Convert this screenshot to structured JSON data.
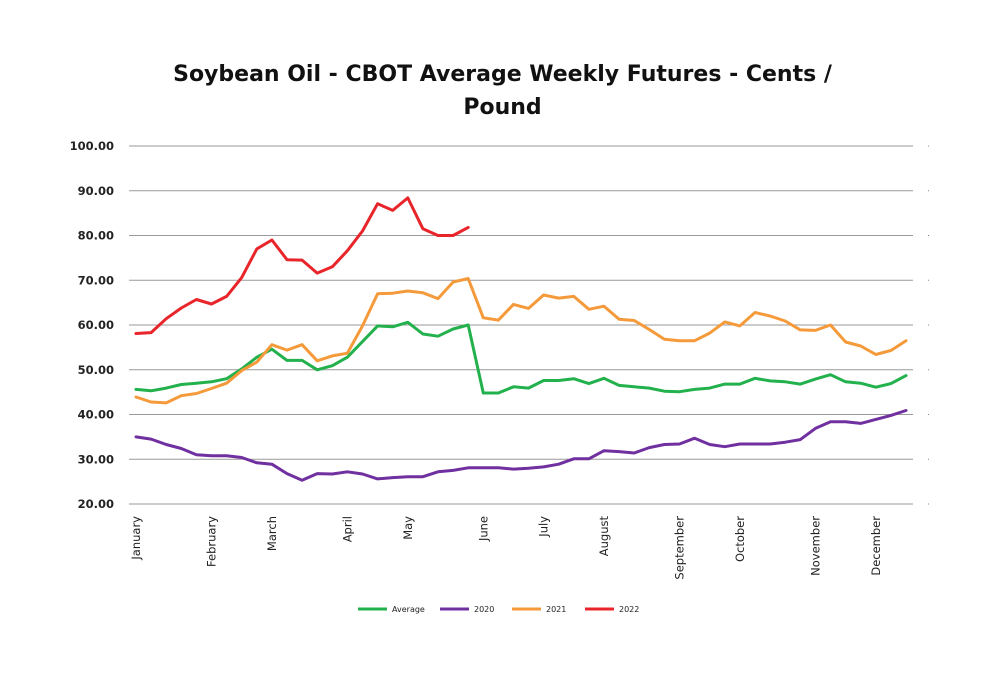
{
  "chart_data": {
    "type": "line",
    "title": "Soybean Oil - CBOT Average Weekly Futures - Cents / Pound",
    "title_lines": [
      "Soybean Oil - CBOT Average Weekly Futures - Cents /",
      "Pound"
    ],
    "xlabel": "",
    "ylabel": "",
    "ylim": [
      20,
      100
    ],
    "y_ticks": [
      "20.00",
      "30.00",
      "40.00",
      "50.00",
      "60.00",
      "70.00",
      "80.00",
      "90.00",
      "100.00"
    ],
    "x_week_count": 52,
    "month_labels": [
      {
        "label": "January",
        "week": 1
      },
      {
        "label": "February",
        "week": 6
      },
      {
        "label": "March",
        "week": 10
      },
      {
        "label": "April",
        "week": 15
      },
      {
        "label": "May",
        "week": 19
      },
      {
        "label": "June",
        "week": 24
      },
      {
        "label": "July",
        "week": 28
      },
      {
        "label": "August",
        "week": 32
      },
      {
        "label": "September",
        "week": 37
      },
      {
        "label": "October",
        "week": 41
      },
      {
        "label": "November",
        "week": 46
      },
      {
        "label": "December",
        "week": 50
      }
    ],
    "grid": true,
    "legend_position": "bottom",
    "series": [
      {
        "name": "Average",
        "color": "#22b14c",
        "values": [
          45.6,
          45.3,
          45.9,
          46.7,
          47.0,
          47.3,
          48.0,
          50.2,
          52.8,
          54.6,
          52.1,
          52.1,
          50.0,
          50.9,
          52.8,
          56.3,
          59.8,
          59.6,
          60.6,
          58.0,
          57.5,
          59.1,
          60.0,
          44.8,
          44.8,
          46.2,
          45.9,
          47.6,
          47.6,
          48.0,
          46.9,
          48.1,
          46.5,
          46.2,
          45.9,
          45.2,
          45.1,
          45.6,
          45.9,
          46.8,
          46.8,
          48.1,
          47.5,
          47.3,
          46.8,
          47.9,
          48.9,
          47.3,
          47.0,
          46.1,
          46.9,
          48.7
        ]
      },
      {
        "name": "2020",
        "color": "#7030a0",
        "values": [
          35.0,
          34.5,
          33.3,
          32.4,
          31.0,
          30.8,
          30.8,
          30.4,
          29.2,
          28.9,
          26.8,
          25.3,
          26.8,
          26.7,
          27.2,
          26.7,
          25.6,
          25.9,
          26.1,
          26.1,
          27.2,
          27.5,
          28.1,
          28.1,
          28.1,
          27.8,
          28.0,
          28.3,
          28.9,
          30.1,
          30.1,
          31.9,
          31.7,
          31.4,
          32.6,
          33.3,
          33.4,
          34.7,
          33.3,
          32.8,
          33.4,
          33.4,
          33.4,
          33.8,
          34.4,
          36.9,
          38.4,
          38.4,
          38.0,
          38.9,
          39.8,
          40.9
        ]
      },
      {
        "name": "2021",
        "color": "#f59a3a",
        "values": [
          43.9,
          42.8,
          42.6,
          44.2,
          44.7,
          45.8,
          47.0,
          49.8,
          51.7,
          55.6,
          54.4,
          55.6,
          52.0,
          53.1,
          53.7,
          59.8,
          67.0,
          67.1,
          67.6,
          67.2,
          65.9,
          69.6,
          70.4,
          61.6,
          61.1,
          64.6,
          63.7,
          66.7,
          66.0,
          66.4,
          63.5,
          64.2,
          61.3,
          61.0,
          59.0,
          56.8,
          56.5,
          56.5,
          58.2,
          60.7,
          59.8,
          62.8,
          62.0,
          60.9,
          58.9,
          58.8,
          60.0,
          56.2,
          55.3,
          53.4,
          54.3,
          56.5
        ]
      },
      {
        "name": "2022",
        "color": "#e8252a",
        "values": [
          58.1,
          58.3,
          61.4,
          63.8,
          65.7,
          64.7,
          66.4,
          70.6,
          77.0,
          79.0,
          74.6,
          74.5,
          71.6,
          73.0,
          76.6,
          81.0,
          87.1,
          85.6,
          88.4,
          81.5,
          80.0,
          80.0,
          81.8
        ]
      }
    ]
  }
}
